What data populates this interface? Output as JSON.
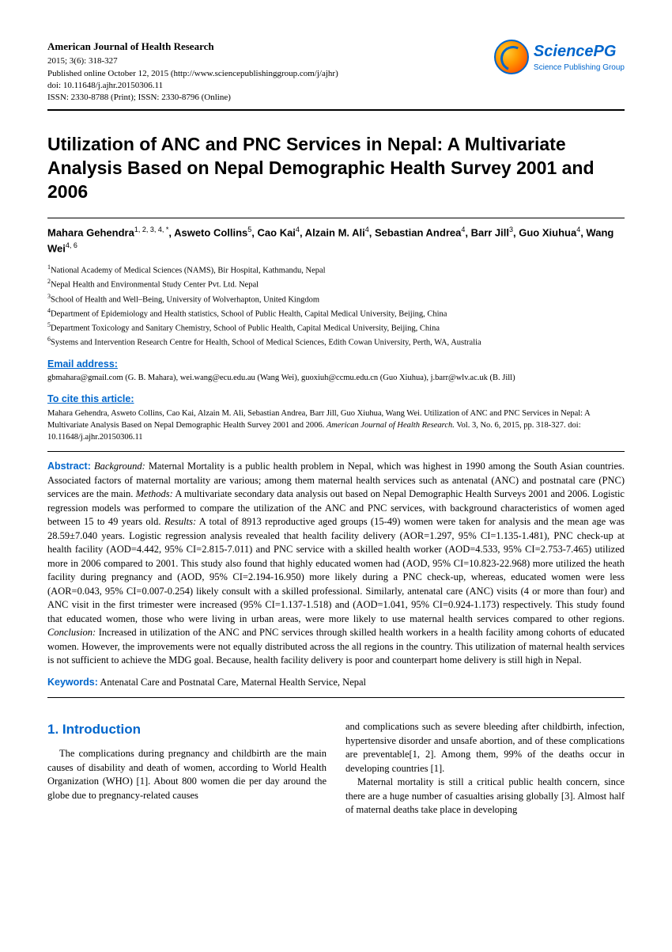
{
  "colors": {
    "accent": "#0066cc",
    "text": "#000000",
    "background": "#ffffff",
    "rule": "#000000"
  },
  "typography": {
    "body_font": "Times New Roman",
    "heading_font": "Arial",
    "title_size_pt": 23,
    "body_size_pt": 12.5,
    "small_size_pt": 10.5
  },
  "journal": {
    "name": "American Journal of Health Research",
    "issue": "2015; 3(6): 318-327",
    "published": "Published online October 12, 2015 (http://www.sciencepublishinggroup.com/j/ajhr)",
    "doi": "doi: 10.11648/j.ajhr.20150306.11",
    "issn": "ISSN: 2330-8788 (Print); ISSN: 2330-8796 (Online)"
  },
  "publisher": {
    "name": "SciencePG",
    "sub": "Science Publishing Group",
    "logo_colors": {
      "outer": "#0066cc",
      "gradient_start": "#ffcc33",
      "gradient_end": "#cc3300"
    }
  },
  "title": "Utilization of ANC and PNC Services in Nepal: A Multivariate Analysis Based on Nepal Demographic Health Survey 2001 and 2006",
  "authors_html": "Mahara Gehendra<sup>1, 2, 3, 4, *</sup>, Asweto Collins<sup>5</sup>, Cao Kai<sup>4</sup>, Alzain M. Ali<sup>4</sup>, Sebastian Andrea<sup>4</sup>, Barr Jill<sup>3</sup>, Guo Xiuhua<sup>4</sup>, Wang Wei<sup>4, 6</sup>",
  "affiliations": [
    "National Academy of Medical Sciences (NAMS), Bir Hospital, Kathmandu, Nepal",
    "Nepal Health and Environmental Study Center Pvt. Ltd. Nepal",
    "School of Health and Well–Being, University of Wolverhapton, United Kingdom",
    "Department of Epidemiology and Health statistics, School of Public Health, Capital Medical University, Beijing, China",
    "Department Toxicology and Sanitary Chemistry, School of Public Health, Capital Medical University, Beijing, China",
    "Systems and Intervention Research Centre for Health, School of Medical Sciences, Edith Cowan University, Perth, WA, Australia"
  ],
  "email_label": "Email address:",
  "email_text": "gbmahara@gmail.com (G. B. Mahara), wei.wang@ecu.edu.au (Wang Wei), guoxiuh@ccmu.edu.cn (Guo Xiuhua), j.barr@wlv.ac.uk (B. Jill)",
  "cite_label": "To cite this article:",
  "cite_text": "Mahara Gehendra, Asweto Collins, Cao Kai, Alzain M. Ali, Sebastian Andrea, Barr Jill, Guo Xiuhua, Wang Wei. Utilization of ANC and PNC Services in Nepal: A Multivariate Analysis Based on Nepal Demographic Health Survey 2001 and 2006. ",
  "cite_italic": "American Journal of Health Research.",
  "cite_tail": " Vol. 3, No. 6, 2015, pp. 318-327. doi: 10.11648/j.ajhr.20150306.11",
  "abstract": {
    "label": "Abstract:",
    "background_label": "Background:",
    "background": " Maternal Mortality is a public health problem in Nepal, which was highest in 1990 among the South Asian countries. Associated factors of maternal mortality are various; among them maternal health services such as antenatal (ANC) and postnatal care (PNC) services are the main. ",
    "methods_label": "Methods:",
    "methods": " A multivariate secondary data analysis out based on Nepal Demographic Health Surveys 2001 and 2006. Logistic regression models was performed to compare the utilization of the ANC and PNC services, with background characteristics of women aged between 15 to 49 years old. ",
    "results_label": "Results:",
    "results": " A total of 8913 reproductive aged groups (15-49) women were taken for analysis and the mean age was 28.59±7.040 years. Logistic regression analysis revealed that health facility delivery (AOR=1.297, 95% CI=1.135-1.481), PNC check-up at health facility (AOD=4.442, 95% CI=2.815-7.011) and PNC service with a skilled health worker (AOD=4.533, 95% CI=2.753-7.465) utilized more in 2006 compared to 2001. This study also found that highly educated women had (AOD, 95% CI=10.823-22.968) more utilized the heath facility during pregnancy and (AOD, 95% CI=2.194-16.950) more likely during a PNC check-up, whereas, educated women were less (AOR=0.043, 95% CI=0.007-0.254) likely consult with a skilled professional. Similarly, antenatal care (ANC) visits (4 or more than four) and ANC visit in the first trimester were increased (95% CI=1.137-1.518) and (AOD=1.041, 95% CI=0.924-1.173) respectively. This study found that educated women, those who were living in urban areas, were more likely to use maternal health services compared to other regions. ",
    "conclusion_label": "Conclusion:",
    "conclusion": " Increased in utilization of the ANC and PNC services through skilled health workers in a health facility among cohorts of educated women. However, the improvements were not equally distributed across the all regions in the country. This utilization of maternal health services is not sufficient to achieve the MDG goal. Because, health facility delivery is poor and counterpart home delivery is still high in Nepal."
  },
  "keywords_label": "Keywords:",
  "keywords": " Antenatal Care and Postnatal Care, Maternal Health Service, Nepal",
  "intro_heading": "1. Introduction",
  "intro_col1": "The complications during pregnancy and childbirth are the main causes of disability and death of women, according to World Health Organization (WHO) [1]. About 800 women die per day around the globe due to pregnancy-related causes",
  "intro_col2_p1": "and complications such as severe bleeding after childbirth, infection, hypertensive disorder and unsafe abortion, and of these complications are preventable[1, 2]. Among them, 99% of the deaths occur in developing countries [1].",
  "intro_col2_p2": "Maternal mortality is still a critical public health concern, since there are a huge number of casualties arising globally [3]. Almost half of maternal deaths take place in developing"
}
